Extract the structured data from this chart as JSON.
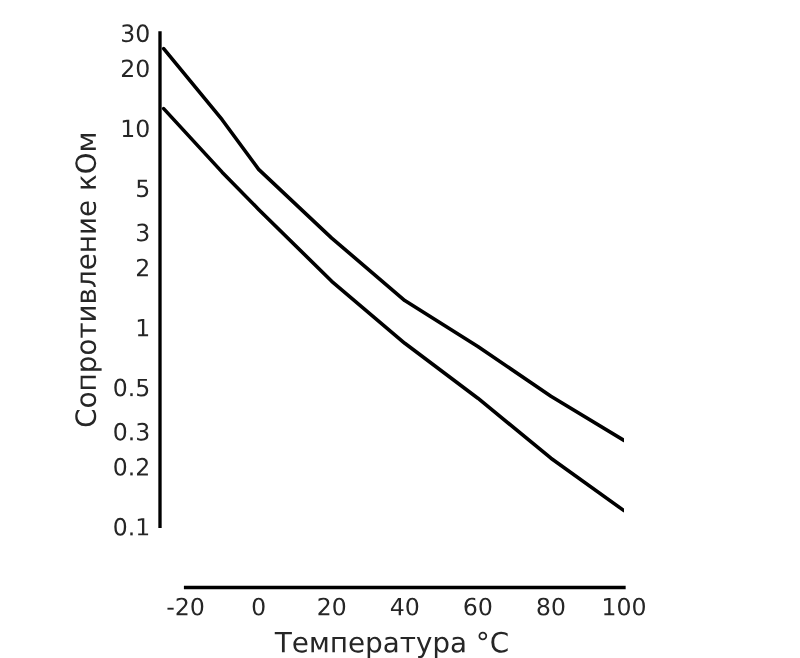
{
  "chart_data": {
    "type": "line",
    "xlabel": "Температура °C",
    "ylabel": "Сопротивление кОм",
    "log": "y",
    "xlim": [
      -27,
      100
    ],
    "xticks": [
      -20,
      0,
      20,
      40,
      60,
      80,
      100
    ],
    "ylim": [
      0.1,
      30
    ],
    "yticks": [
      0.1,
      0.2,
      0.3,
      0.5,
      1,
      2,
      3,
      5,
      10,
      20,
      30
    ],
    "grid": false,
    "legend": false,
    "marker": "none",
    "line_style": "solid",
    "series": [
      {
        "color": "#000000",
        "x": [
          -26,
          -10,
          0,
          20,
          40,
          60,
          80,
          100
        ],
        "values": [
          25,
          11,
          6.2,
          2.8,
          1.36,
          0.8,
          0.45,
          0.27
        ]
      },
      {
        "color": "#000000",
        "x": [
          -26,
          -10,
          0,
          20,
          40,
          60,
          80,
          100
        ],
        "values": [
          12.5,
          6,
          3.9,
          1.7,
          0.83,
          0.44,
          0.22,
          0.12
        ]
      }
    ]
  }
}
